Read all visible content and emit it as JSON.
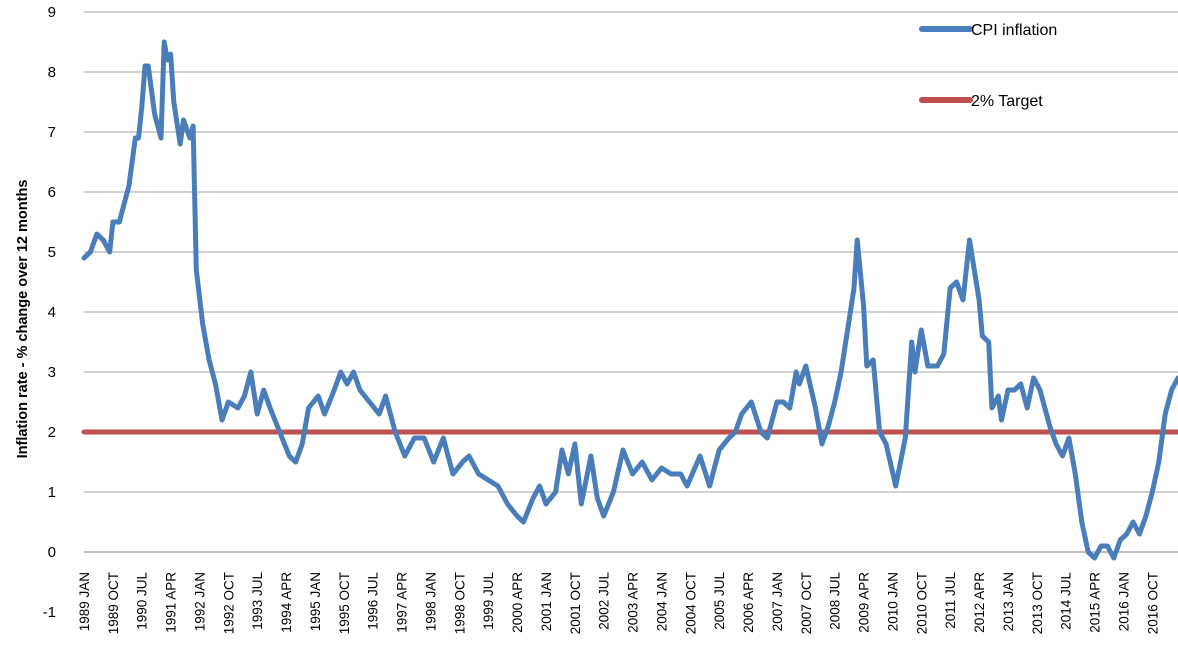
{
  "chart_data": {
    "type": "line",
    "ylabel": "Inflation rate  - % change over 12 months",
    "ylim": [
      -1,
      9
    ],
    "yticks": [
      "9",
      "8",
      "7",
      "6",
      "5",
      "4",
      "3",
      "2",
      "1",
      "0",
      "-1"
    ],
    "xlim": [
      "1989-01",
      "2017-06"
    ],
    "xticks": [
      {
        "label": "1989 JAN",
        "date": "1989-01"
      },
      {
        "label": "1989 OCT",
        "date": "1989-10"
      },
      {
        "label": "1990 JUL",
        "date": "1990-07"
      },
      {
        "label": "1991 APR",
        "date": "1991-04"
      },
      {
        "label": "1992 JAN",
        "date": "1992-01"
      },
      {
        "label": "1992 OCT",
        "date": "1992-10"
      },
      {
        "label": "1993 JUL",
        "date": "1993-07"
      },
      {
        "label": "1994 APR",
        "date": "1994-04"
      },
      {
        "label": "1995 JAN",
        "date": "1995-01"
      },
      {
        "label": "1995 OCT",
        "date": "1995-10"
      },
      {
        "label": "1996 JUL",
        "date": "1996-07"
      },
      {
        "label": "1997 APR",
        "date": "1997-04"
      },
      {
        "label": "1998 JAN",
        "date": "1998-01"
      },
      {
        "label": "1998 OCT",
        "date": "1998-10"
      },
      {
        "label": "1999 JUL",
        "date": "1999-07"
      },
      {
        "label": "2000 APR",
        "date": "2000-04"
      },
      {
        "label": "2001 JAN",
        "date": "2001-01"
      },
      {
        "label": "2001 OCT",
        "date": "2001-10"
      },
      {
        "label": "2002 JUL",
        "date": "2002-07"
      },
      {
        "label": "2003 APR",
        "date": "2003-04"
      },
      {
        "label": "2004 JAN",
        "date": "2004-01"
      },
      {
        "label": "2004 OCT",
        "date": "2004-10"
      },
      {
        "label": "2005 JUL",
        "date": "2005-07"
      },
      {
        "label": "2006 APR",
        "date": "2006-04"
      },
      {
        "label": "2007 JAN",
        "date": "2007-01"
      },
      {
        "label": "2007 OCT",
        "date": "2007-10"
      },
      {
        "label": "2008 JUL",
        "date": "2008-07"
      },
      {
        "label": "2009 APR",
        "date": "2009-04"
      },
      {
        "label": "2010 JAN",
        "date": "2010-01"
      },
      {
        "label": "2010 OCT",
        "date": "2010-10"
      },
      {
        "label": "2011 JUL",
        "date": "2011-07"
      },
      {
        "label": "2012 APR",
        "date": "2012-04"
      },
      {
        "label": "2013 JAN",
        "date": "2013-01"
      },
      {
        "label": "2013 OCT",
        "date": "2013-10"
      },
      {
        "label": "2014 JUL",
        "date": "2014-07"
      },
      {
        "label": "2015 APR",
        "date": "2015-04"
      },
      {
        "label": "2016 JAN",
        "date": "2016-01"
      },
      {
        "label": "2016 OCT",
        "date": "2016-10"
      }
    ],
    "grid": true,
    "legend_position": "top-right",
    "legend": [
      {
        "label": "CPI inflation",
        "series": "cpi"
      },
      {
        "label": "2% Target",
        "series": "target"
      }
    ],
    "series": [
      {
        "name": "CPI inflation",
        "key": "cpi",
        "color": "#4a7ebb",
        "points": [
          [
            "1989-01",
            4.9
          ],
          [
            "1989-03",
            5.0
          ],
          [
            "1989-05",
            5.3
          ],
          [
            "1989-07",
            5.2
          ],
          [
            "1989-09",
            5.0
          ],
          [
            "1989-10",
            5.5
          ],
          [
            "1989-12",
            5.5
          ],
          [
            "1990-02",
            5.9
          ],
          [
            "1990-03",
            6.1
          ],
          [
            "1990-05",
            6.9
          ],
          [
            "1990-06",
            6.9
          ],
          [
            "1990-07",
            7.4
          ],
          [
            "1990-08",
            8.1
          ],
          [
            "1990-09",
            8.1
          ],
          [
            "1990-11",
            7.3
          ],
          [
            "1991-01",
            6.9
          ],
          [
            "1991-02",
            8.5
          ],
          [
            "1991-03",
            8.2
          ],
          [
            "1991-04",
            8.3
          ],
          [
            "1991-05",
            7.5
          ],
          [
            "1991-07",
            6.8
          ],
          [
            "1991-08",
            7.2
          ],
          [
            "1991-10",
            6.9
          ],
          [
            "1991-11",
            7.1
          ],
          [
            "1991-12",
            4.7
          ],
          [
            "1992-02",
            3.8
          ],
          [
            "1992-04",
            3.2
          ],
          [
            "1992-06",
            2.8
          ],
          [
            "1992-08",
            2.2
          ],
          [
            "1992-10",
            2.5
          ],
          [
            "1993-01",
            2.4
          ],
          [
            "1993-03",
            2.6
          ],
          [
            "1993-05",
            3.0
          ],
          [
            "1993-07",
            2.3
          ],
          [
            "1993-09",
            2.7
          ],
          [
            "1993-11",
            2.4
          ],
          [
            "1994-02",
            2.0
          ],
          [
            "1994-05",
            1.6
          ],
          [
            "1994-07",
            1.5
          ],
          [
            "1994-09",
            1.8
          ],
          [
            "1994-11",
            2.4
          ],
          [
            "1995-02",
            2.6
          ],
          [
            "1995-04",
            2.3
          ],
          [
            "1995-07",
            2.7
          ],
          [
            "1995-09",
            3.0
          ],
          [
            "1995-11",
            2.8
          ],
          [
            "1996-01",
            3.0
          ],
          [
            "1996-03",
            2.7
          ],
          [
            "1996-06",
            2.5
          ],
          [
            "1996-09",
            2.3
          ],
          [
            "1996-11",
            2.6
          ],
          [
            "1997-02",
            2.0
          ],
          [
            "1997-05",
            1.6
          ],
          [
            "1997-08",
            1.9
          ],
          [
            "1997-11",
            1.9
          ],
          [
            "1998-02",
            1.5
          ],
          [
            "1998-05",
            1.9
          ],
          [
            "1998-08",
            1.3
          ],
          [
            "1998-11",
            1.5
          ],
          [
            "1999-01",
            1.6
          ],
          [
            "1999-04",
            1.3
          ],
          [
            "1999-07",
            1.2
          ],
          [
            "1999-10",
            1.1
          ],
          [
            "2000-01",
            0.8
          ],
          [
            "2000-04",
            0.6
          ],
          [
            "2000-06",
            0.5
          ],
          [
            "2000-09",
            0.9
          ],
          [
            "2000-11",
            1.1
          ],
          [
            "2001-01",
            0.8
          ],
          [
            "2001-04",
            1.0
          ],
          [
            "2001-06",
            1.7
          ],
          [
            "2001-08",
            1.3
          ],
          [
            "2001-10",
            1.8
          ],
          [
            "2001-12",
            0.8
          ],
          [
            "2002-03",
            1.6
          ],
          [
            "2002-05",
            0.9
          ],
          [
            "2002-07",
            0.6
          ],
          [
            "2002-10",
            1.0
          ],
          [
            "2003-01",
            1.7
          ],
          [
            "2003-04",
            1.3
          ],
          [
            "2003-07",
            1.5
          ],
          [
            "2003-10",
            1.2
          ],
          [
            "2004-01",
            1.4
          ],
          [
            "2004-04",
            1.3
          ],
          [
            "2004-07",
            1.3
          ],
          [
            "2004-09",
            1.1
          ],
          [
            "2005-01",
            1.6
          ],
          [
            "2005-04",
            1.1
          ],
          [
            "2005-07",
            1.7
          ],
          [
            "2005-10",
            1.9
          ],
          [
            "2005-12",
            2.0
          ],
          [
            "2006-02",
            2.3
          ],
          [
            "2006-05",
            2.5
          ],
          [
            "2006-08",
            2.0
          ],
          [
            "2006-10",
            1.9
          ],
          [
            "2007-01",
            2.5
          ],
          [
            "2007-03",
            2.5
          ],
          [
            "2007-05",
            2.4
          ],
          [
            "2007-07",
            3.0
          ],
          [
            "2007-08",
            2.8
          ],
          [
            "2007-10",
            3.1
          ],
          [
            "2008-01",
            2.4
          ],
          [
            "2008-03",
            1.8
          ],
          [
            "2008-05",
            2.1
          ],
          [
            "2008-07",
            2.5
          ],
          [
            "2008-09",
            3.0
          ],
          [
            "2008-11",
            3.7
          ],
          [
            "2009-01",
            4.4
          ],
          [
            "2009-02",
            5.2
          ],
          [
            "2009-04",
            4.1
          ],
          [
            "2009-05",
            3.1
          ],
          [
            "2009-07",
            3.2
          ],
          [
            "2009-09",
            2.0
          ],
          [
            "2009-11",
            1.8
          ],
          [
            "2010-02",
            1.1
          ],
          [
            "2010-05",
            1.9
          ],
          [
            "2010-07",
            3.5
          ],
          [
            "2010-08",
            3.0
          ],
          [
            "2010-10",
            3.7
          ],
          [
            "2010-12",
            3.1
          ],
          [
            "2011-03",
            3.1
          ],
          [
            "2011-05",
            3.3
          ],
          [
            "2011-07",
            4.4
          ],
          [
            "2011-09",
            4.5
          ],
          [
            "2011-11",
            4.2
          ],
          [
            "2012-01",
            5.2
          ],
          [
            "2012-04",
            4.2
          ],
          [
            "2012-05",
            3.6
          ],
          [
            "2012-07",
            3.5
          ],
          [
            "2012-08",
            2.4
          ],
          [
            "2012-10",
            2.6
          ],
          [
            "2012-11",
            2.2
          ],
          [
            "2013-01",
            2.7
          ],
          [
            "2013-03",
            2.7
          ],
          [
            "2013-05",
            2.8
          ],
          [
            "2013-07",
            2.4
          ],
          [
            "2013-09",
            2.9
          ],
          [
            "2013-11",
            2.7
          ],
          [
            "2014-02",
            2.1
          ],
          [
            "2014-04",
            1.8
          ],
          [
            "2014-06",
            1.6
          ],
          [
            "2014-08",
            1.9
          ],
          [
            "2014-10",
            1.3
          ],
          [
            "2014-12",
            0.5
          ],
          [
            "2015-02",
            0.0
          ],
          [
            "2015-04",
            -0.1
          ],
          [
            "2015-06",
            0.1
          ],
          [
            "2015-08",
            0.1
          ],
          [
            "2015-10",
            -0.1
          ],
          [
            "2015-12",
            0.2
          ],
          [
            "2016-02",
            0.3
          ],
          [
            "2016-04",
            0.5
          ],
          [
            "2016-06",
            0.3
          ],
          [
            "2016-08",
            0.6
          ],
          [
            "2016-10",
            1.0
          ],
          [
            "2016-12",
            1.5
          ],
          [
            "2017-02",
            2.3
          ],
          [
            "2017-04",
            2.7
          ],
          [
            "2017-06",
            2.9
          ]
        ]
      },
      {
        "name": "2% Target",
        "key": "target",
        "color": "#c0504d",
        "points": [
          [
            "1989-01",
            2
          ],
          [
            "2017-06",
            2
          ]
        ]
      }
    ]
  }
}
